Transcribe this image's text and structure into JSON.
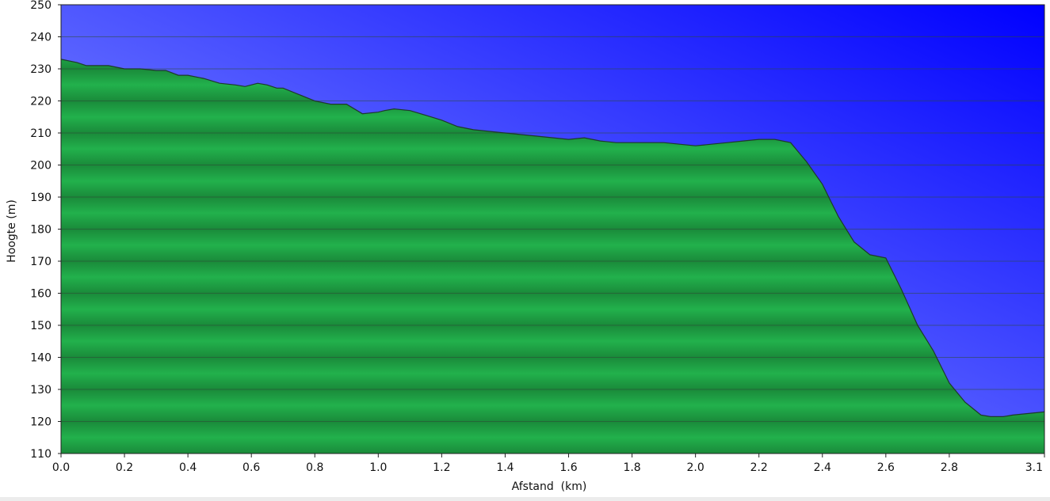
{
  "chart_data": {
    "type": "area",
    "title": "",
    "xlabel": "Afstand  (km)",
    "ylabel": "Hoogte (m)",
    "xlim": [
      0,
      3.1
    ],
    "ylim": [
      110,
      250
    ],
    "x_ticks": [
      0.0,
      0.2,
      0.4,
      0.6,
      0.8,
      1.0,
      1.2,
      1.4,
      1.6,
      1.8,
      2.0,
      2.2,
      2.4,
      2.6,
      2.8,
      3.1
    ],
    "x_tick_labels": [
      "0.0",
      "0.2",
      "0.4",
      "0.6",
      "0.8",
      "1.0",
      "1.2",
      "1.4",
      "1.6",
      "1.8",
      "2.0",
      "2.2",
      "2.4",
      "2.6",
      "2.8",
      "3.1"
    ],
    "y_ticks": [
      110,
      120,
      130,
      140,
      150,
      160,
      170,
      180,
      190,
      200,
      210,
      220,
      230,
      240,
      250
    ],
    "y_tick_labels": [
      "110",
      "120",
      "130",
      "140",
      "150",
      "160",
      "170",
      "180",
      "190",
      "200",
      "210",
      "220",
      "230",
      "240",
      "250"
    ],
    "grid": true,
    "legend": "none",
    "colors": {
      "sky_top": "#0000ff",
      "sky_bottom": "#9fb0ff",
      "terrain_light": "#22b14c",
      "terrain_dark": "#1a8a3a",
      "outline": "#1e3a2a",
      "gridline": "#2d4a34"
    },
    "series": [
      {
        "x": [
          0.0,
          0.05,
          0.08,
          0.1,
          0.15,
          0.2,
          0.25,
          0.3,
          0.33,
          0.37,
          0.4,
          0.45,
          0.5,
          0.55,
          0.58,
          0.62,
          0.65,
          0.68,
          0.7,
          0.75,
          0.8,
          0.85,
          0.9,
          0.95,
          1.0,
          1.02,
          1.05,
          1.1,
          1.15,
          1.2,
          1.25,
          1.3,
          1.4,
          1.5,
          1.6,
          1.65,
          1.7,
          1.75,
          1.8,
          1.9,
          2.0,
          2.05,
          2.1,
          2.15,
          2.2,
          2.25,
          2.3,
          2.35,
          2.4,
          2.45,
          2.5,
          2.55,
          2.6,
          2.65,
          2.7,
          2.75,
          2.8,
          2.85,
          2.9,
          2.93,
          2.97,
          3.0,
          3.05,
          3.1
        ],
        "values": [
          233,
          232,
          231,
          231,
          231,
          230,
          230,
          229.5,
          229.5,
          228,
          228,
          227,
          225.5,
          225,
          224.5,
          225.5,
          225,
          224,
          224,
          222,
          220,
          219,
          219,
          216,
          216.5,
          217,
          217.5,
          217,
          215.5,
          214,
          212,
          211,
          210,
          209,
          208,
          208.5,
          207.5,
          207,
          207,
          207,
          206,
          206.5,
          207,
          207.5,
          208,
          208,
          207,
          201,
          194,
          184,
          176,
          172,
          171,
          161,
          150,
          142,
          132,
          126,
          122,
          121.5,
          121.5,
          122,
          122.5,
          123
        ]
      }
    ]
  }
}
